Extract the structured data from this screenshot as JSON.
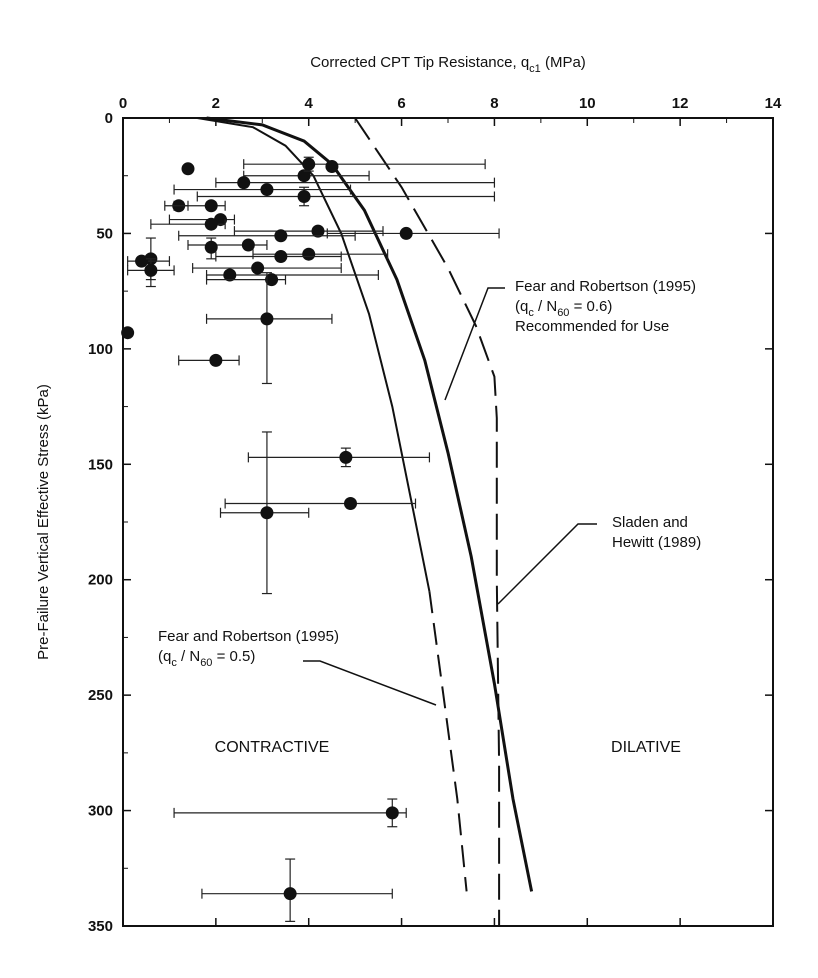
{
  "chart_data": {
    "type": "scatter",
    "x_axis": {
      "label": "Corrected CPT Tip Resistance, q",
      "label_sub": "c1",
      "label_unit": " (MPa)",
      "position": "top",
      "range": [
        0,
        14
      ],
      "ticks": [
        "0",
        "2",
        "4",
        "6",
        "8",
        "10",
        "12",
        "14"
      ]
    },
    "y_axis": {
      "label": "Pre-Failure Vertical Effective Stress  (kPa)",
      "range": [
        0,
        350
      ],
      "inverted": true,
      "ticks": [
        "0",
        "50",
        "100",
        "150",
        "200",
        "250",
        "300",
        "350"
      ]
    },
    "grid": false,
    "points": [
      {
        "x": 1.4,
        "y": 22,
        "xerr": null,
        "yerr": null
      },
      {
        "x": 3.9,
        "y": 25,
        "xerr": [
          2.6,
          5.3
        ],
        "yerr": null
      },
      {
        "x": 4.0,
        "y": 20,
        "xerr": [
          2.6,
          7.8
        ],
        "yerr": [
          17,
          23
        ]
      },
      {
        "x": 4.5,
        "y": 21,
        "xerr": null,
        "yerr": null
      },
      {
        "x": 2.6,
        "y": 28,
        "xerr": [
          2.0,
          8.0
        ],
        "yerr": null
      },
      {
        "x": 3.1,
        "y": 31,
        "xerr": [
          1.1,
          4.9
        ],
        "yerr": null
      },
      {
        "x": 3.9,
        "y": 34,
        "xerr": [
          1.6,
          8.0
        ],
        "yerr": [
          30,
          38
        ]
      },
      {
        "x": 1.2,
        "y": 38,
        "xerr": [
          1.1,
          1.4
        ],
        "yerr": null
      },
      {
        "x": 1.9,
        "y": 38,
        "xerr": [
          0.9,
          2.2
        ],
        "yerr": null
      },
      {
        "x": 2.1,
        "y": 44,
        "xerr": [
          1.0,
          2.4
        ],
        "yerr": null
      },
      {
        "x": 1.9,
        "y": 46,
        "xerr": [
          0.6,
          2.2
        ],
        "yerr": null
      },
      {
        "x": 4.2,
        "y": 49,
        "xerr": [
          2.4,
          5.6
        ],
        "yerr": null
      },
      {
        "x": 6.1,
        "y": 50,
        "xerr": [
          4.4,
          8.1
        ],
        "yerr": null
      },
      {
        "x": 3.4,
        "y": 51,
        "xerr": [
          1.2,
          5.0
        ],
        "yerr": null
      },
      {
        "x": 2.7,
        "y": 55,
        "xerr": [
          1.4,
          3.1
        ],
        "yerr": null
      },
      {
        "x": 1.9,
        "y": 56,
        "xerr": null,
        "yerr": [
          52,
          61
        ]
      },
      {
        "x": 4.0,
        "y": 59,
        "xerr": [
          2.8,
          5.7
        ],
        "yerr": null
      },
      {
        "x": 3.4,
        "y": 60,
        "xerr": [
          2.0,
          4.7
        ],
        "yerr": null
      },
      {
        "x": 0.6,
        "y": 61,
        "xerr": null,
        "yerr": [
          52,
          70
        ]
      },
      {
        "x": 0.4,
        "y": 62,
        "xerr": [
          0.1,
          1.0
        ],
        "yerr": null
      },
      {
        "x": 0.6,
        "y": 66,
        "xerr": [
          0.1,
          1.1
        ],
        "yerr": [
          61,
          73
        ]
      },
      {
        "x": 2.9,
        "y": 65,
        "xerr": [
          1.5,
          4.7
        ],
        "yerr": null
      },
      {
        "x": 2.3,
        "y": 68,
        "xerr": [
          1.8,
          5.5
        ],
        "yerr": null
      },
      {
        "x": 3.2,
        "y": 70,
        "xerr": [
          1.8,
          3.5
        ],
        "yerr": null
      },
      {
        "x": 3.1,
        "y": 87,
        "xerr": [
          1.8,
          4.5
        ],
        "yerr": [
          67,
          115
        ]
      },
      {
        "x": 0.1,
        "y": 93,
        "xerr": null,
        "yerr": null
      },
      {
        "x": 2.0,
        "y": 105,
        "xerr": [
          1.2,
          2.5
        ],
        "yerr": null
      },
      {
        "x": 4.8,
        "y": 147,
        "xerr": [
          2.7,
          6.6
        ],
        "yerr": [
          143,
          151
        ]
      },
      {
        "x": 4.9,
        "y": 167,
        "xerr": [
          2.2,
          6.3
        ],
        "yerr": null
      },
      {
        "x": 3.1,
        "y": 171,
        "xerr": [
          2.1,
          4.0
        ],
        "yerr": [
          136,
          206
        ]
      },
      {
        "x": 5.8,
        "y": 301,
        "xerr": [
          1.1,
          6.1
        ],
        "yerr": [
          295,
          307
        ]
      },
      {
        "x": 3.6,
        "y": 336,
        "xerr": [
          1.7,
          5.8
        ],
        "yerr": [
          321,
          348
        ]
      }
    ],
    "curves": [
      {
        "style": "thick-solid",
        "x": [
          1.8,
          3.0,
          3.9,
          4.5,
          5.2,
          5.9,
          6.5,
          7.0,
          7.5,
          8.0,
          8.4,
          8.8
        ],
        "y": [
          0,
          3,
          10,
          20,
          40,
          70,
          105,
          145,
          190,
          245,
          295,
          335
        ]
      },
      {
        "style": "thin-solid-dashed",
        "x": [
          1.6,
          2.8,
          3.5,
          4.1,
          4.7,
          5.3,
          5.8,
          6.2,
          6.6,
          6.9,
          7.2,
          7.4
        ],
        "y": [
          0,
          4,
          12,
          25,
          50,
          85,
          125,
          165,
          205,
          250,
          295,
          335
        ],
        "dashed_from_y": 230
      },
      {
        "style": "long-dash",
        "x": [
          5.0,
          6.0,
          7.0,
          7.6,
          8.0,
          8.05,
          8.05,
          8.1,
          8.1
        ],
        "y": [
          0,
          30,
          65,
          90,
          112,
          130,
          200,
          280,
          350
        ]
      }
    ],
    "annotations": [
      {
        "lines": [
          "Fear and Robertson (1995)",
          "(q|c| / N|60| = 0.6)",
          "Recommended for Use"
        ]
      },
      {
        "lines": [
          "Sladen and",
          "Hewitt (1989)"
        ]
      },
      {
        "lines": [
          "Fear and Robertson (1995)",
          "(q|c| / N|60| = 0.5)"
        ]
      }
    ],
    "region_labels": [
      "CONTRACTIVE",
      "DILATIVE"
    ]
  }
}
